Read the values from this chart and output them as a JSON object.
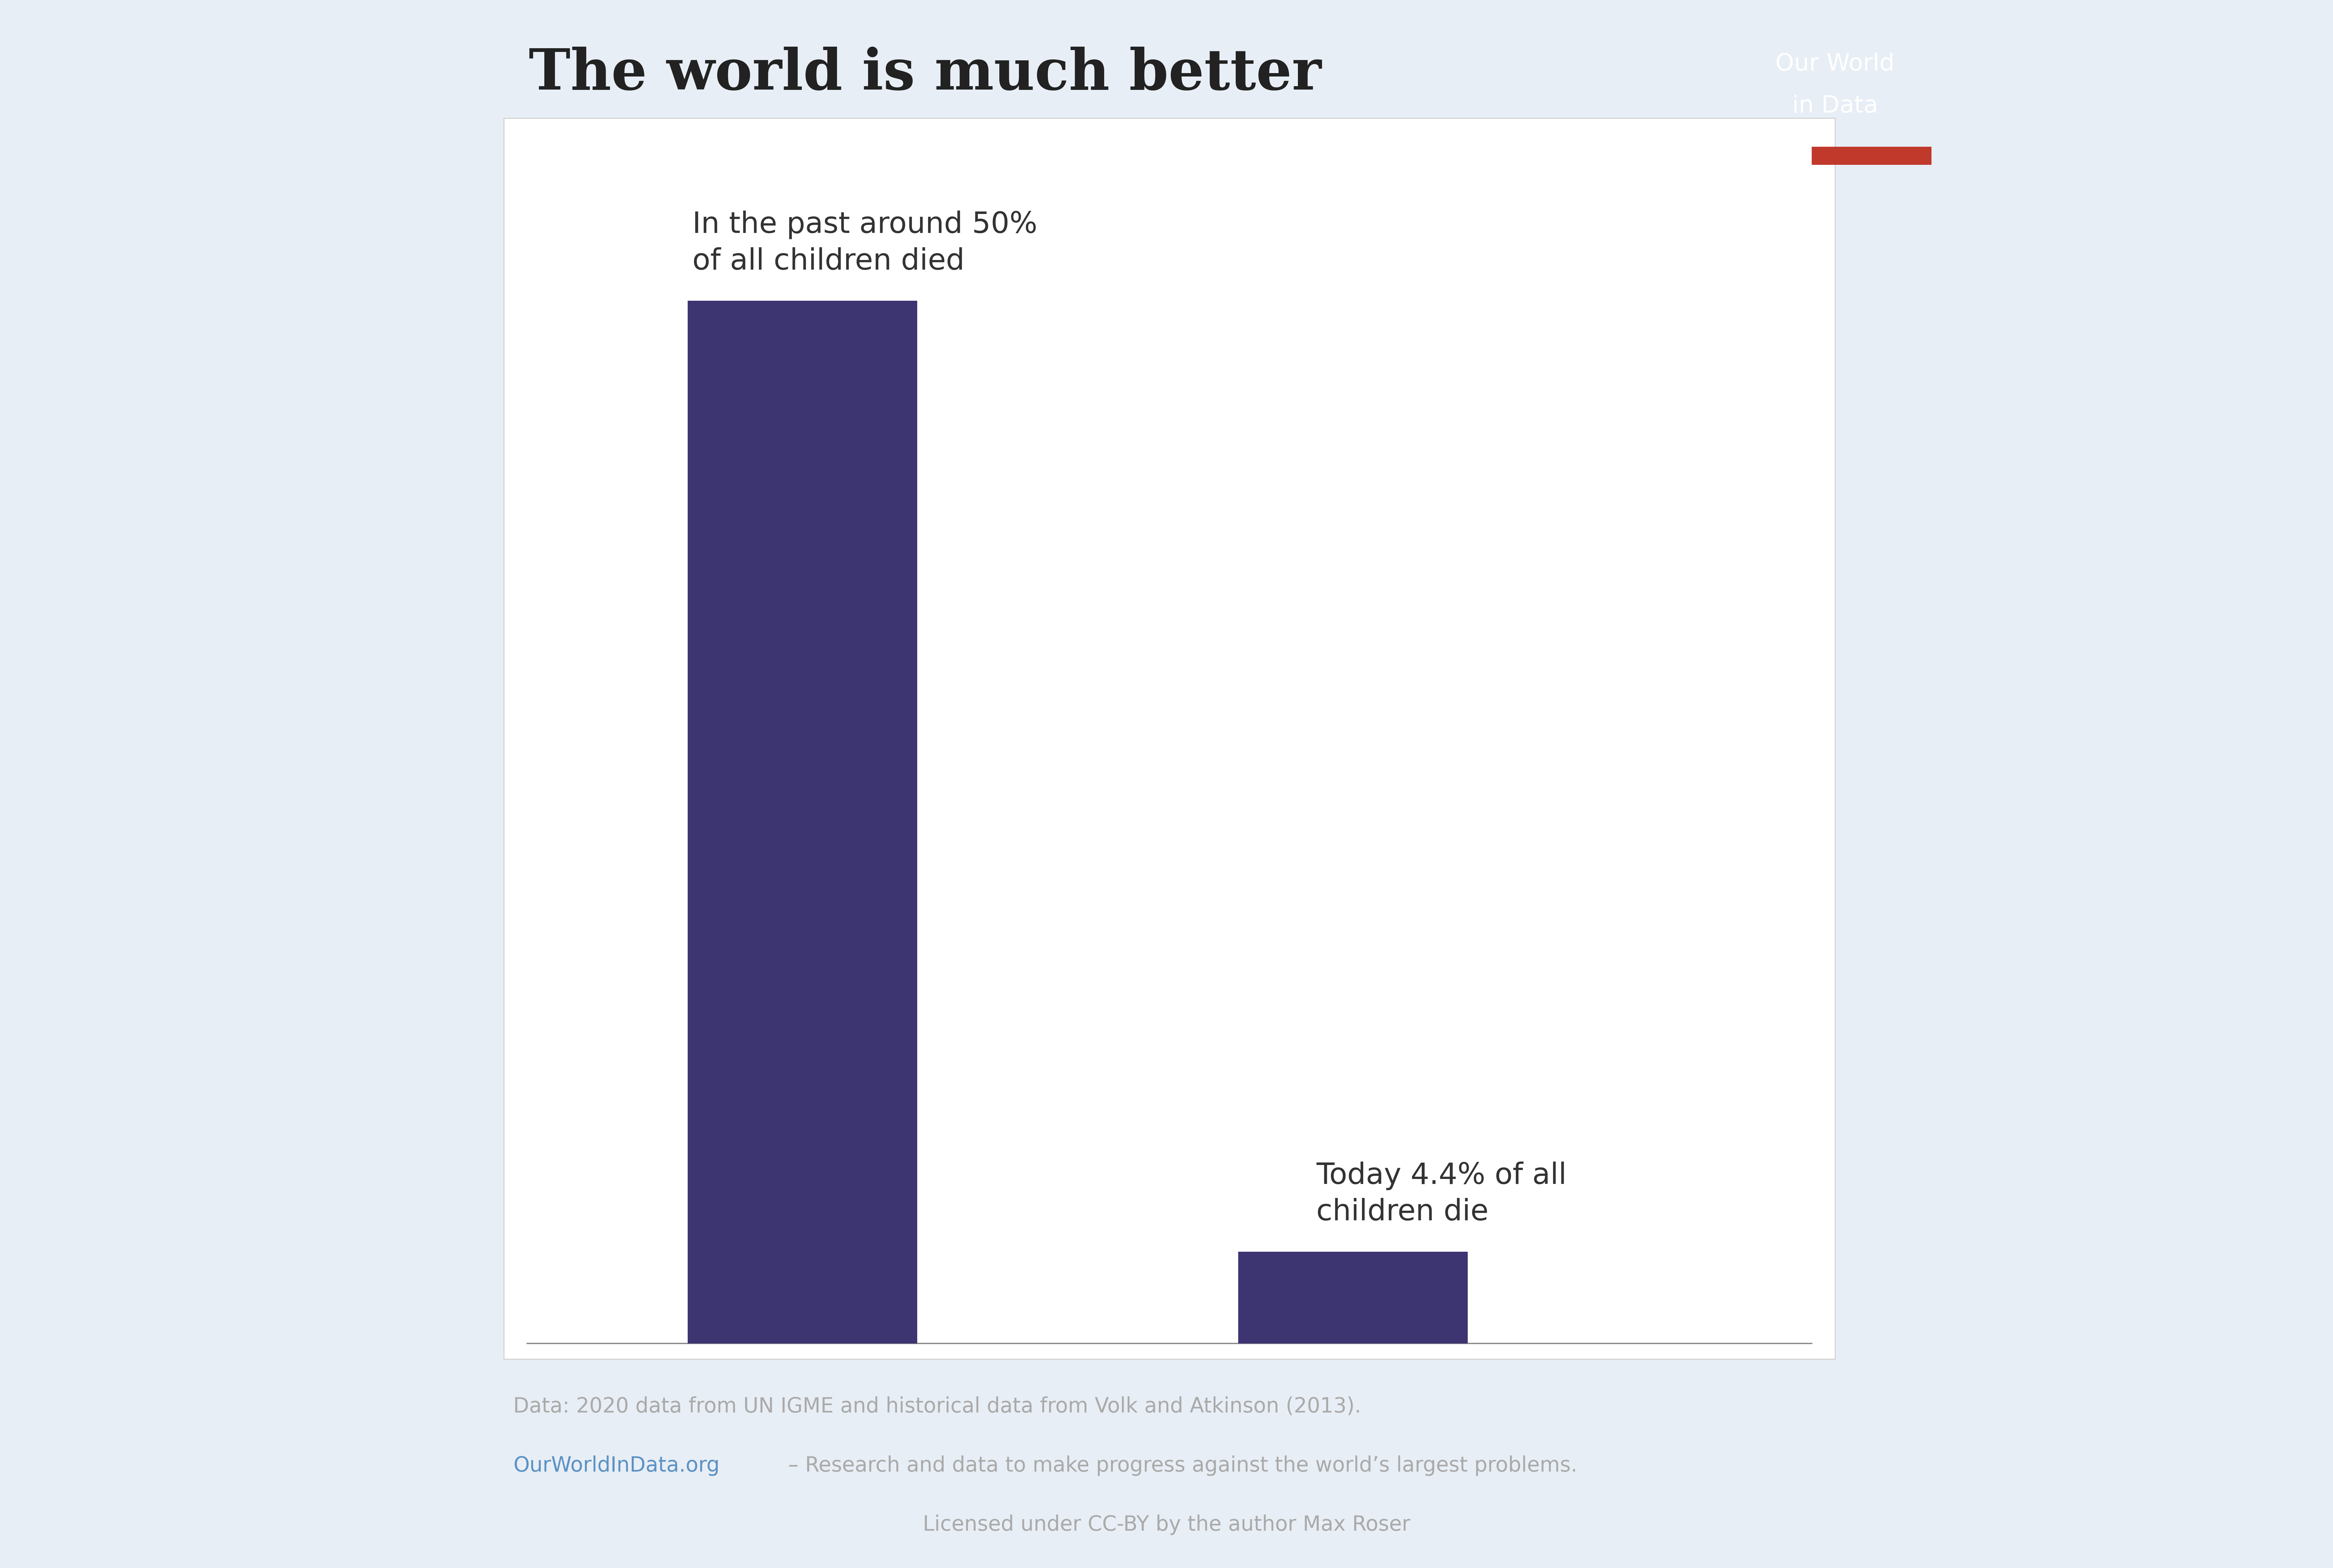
{
  "title": "The world is much better",
  "bar_values": [
    50,
    4.4
  ],
  "bar_color": "#3d3472",
  "bar_annotations": [
    "In the past around 50%\nof all children died",
    "Today 4.4% of all\nchildren die"
  ],
  "background_color": "#e8eef5",
  "chart_bg_color": "#ffffff",
  "footer_line1": "Data: 2020 data from UN IGME and historical data from Volk and Atkinson (2013).",
  "footer_line2_pre": "OurWorldInData.org",
  "footer_line2_mid": " – Research and data to make progress against the world’s largest problems.",
  "footer_line3": "Licensed under CC-BY by the author Max Roser",
  "footer_color": "#aaaaaa",
  "footer_link_color": "#5b92c4",
  "owid_box_color": "#1a2e4a",
  "owid_red_color": "#c0392b",
  "title_fontsize": 130,
  "annotation_fontsize": 68,
  "footer_fontsize": 48,
  "owid_fontsize": 55,
  "title_color": "#222222"
}
